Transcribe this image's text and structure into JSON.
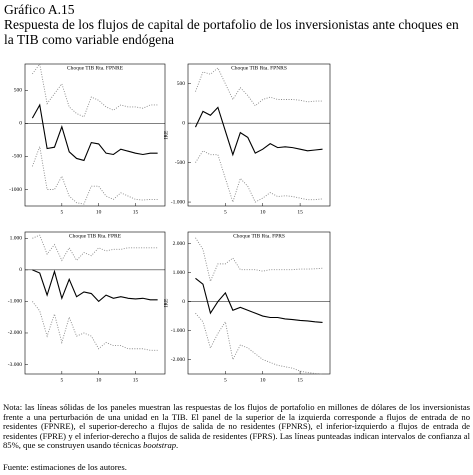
{
  "figure": {
    "label": "Gráfico A.15",
    "title": "Respuesta de los flujos de capital de portafolio de los inversionistas ante choques en la TIB como variable endógena"
  },
  "chart_data": [
    {
      "type": "line",
      "title": "Choque TIB Rta. FPNRE",
      "x": [
        1,
        2,
        3,
        4,
        5,
        6,
        7,
        8,
        9,
        10,
        11,
        12,
        13,
        14,
        15,
        16,
        17,
        18
      ],
      "xlim": [
        0,
        19
      ],
      "xticks": [
        5,
        10,
        15
      ],
      "ylim": [
        -1250,
        900
      ],
      "yticks": [
        500,
        0,
        -500,
        -1000
      ],
      "series": [
        {
          "color": "#000000",
          "style": "solid",
          "values": [
            80,
            280,
            -380,
            -360,
            -50,
            -430,
            -530,
            -560,
            -290,
            -310,
            -450,
            -470,
            -390,
            -420,
            -450,
            -470,
            -450,
            -450
          ]
        },
        {
          "color": "#888888",
          "style": "dotted",
          "values": [
            750,
            900,
            300,
            450,
            600,
            250,
            150,
            100,
            400,
            350,
            250,
            200,
            280,
            250,
            250,
            230,
            280,
            280
          ]
        },
        {
          "color": "#888888",
          "style": "dotted",
          "values": [
            -650,
            -350,
            -1000,
            -1000,
            -800,
            -1100,
            -1200,
            -1220,
            -950,
            -950,
            -1100,
            -1150,
            -1050,
            -1100,
            -1150,
            -1160,
            -1150,
            -1150
          ]
        }
      ]
    },
    {
      "type": "line",
      "title": "Choque TIB Rta. FPNRS",
      "ylabel": "IRE",
      "x": [
        1,
        2,
        3,
        4,
        5,
        6,
        7,
        8,
        9,
        10,
        11,
        12,
        13,
        14,
        15,
        16,
        17,
        18
      ],
      "xlim": [
        0,
        19
      ],
      "xticks": [
        5,
        10,
        15
      ],
      "ylim": [
        -1050,
        750
      ],
      "yticks": [
        500,
        0,
        -500,
        {
          "value": -1000,
          "label": "-1.000"
        }
      ],
      "series": [
        {
          "color": "#000000",
          "style": "solid",
          "values": [
            -50,
            150,
            100,
            200,
            -100,
            -400,
            -120,
            -180,
            -380,
            -330,
            -260,
            -310,
            -300,
            -310,
            -330,
            -350,
            -340,
            -330
          ]
        },
        {
          "color": "#888888",
          "style": "dotted",
          "values": [
            400,
            650,
            620,
            700,
            500,
            300,
            450,
            350,
            220,
            300,
            330,
            300,
            300,
            300,
            290,
            270,
            280,
            280
          ]
        },
        {
          "color": "#888888",
          "style": "dotted",
          "values": [
            -500,
            -350,
            -400,
            -400,
            -700,
            -1000,
            -700,
            -800,
            -1000,
            -950,
            -880,
            -930,
            -920,
            -930,
            -950,
            -970,
            -970,
            -960
          ]
        }
      ]
    },
    {
      "type": "line",
      "title": "Choque TIB Rta. FPRE",
      "x": [
        1,
        2,
        3,
        4,
        5,
        6,
        7,
        8,
        9,
        10,
        11,
        12,
        13,
        14,
        15,
        16,
        17,
        18
      ],
      "xlim": [
        0,
        19
      ],
      "xticks": [
        5,
        10,
        15
      ],
      "ylim": [
        -3300,
        1200
      ],
      "yticks": [
        {
          "value": 1000,
          "label": "1.000"
        },
        0,
        {
          "value": -1000,
          "label": "-1.000"
        },
        {
          "value": -2000,
          "label": "-2.000"
        },
        {
          "value": -3000,
          "label": "-3.000"
        }
      ],
      "series": [
        {
          "color": "#000000",
          "style": "solid",
          "values": [
            0,
            -100,
            -800,
            -50,
            -900,
            -300,
            -850,
            -700,
            -750,
            -1000,
            -800,
            -900,
            -850,
            -900,
            -920,
            -900,
            -950,
            -950
          ]
        },
        {
          "color": "#888888",
          "style": "dotted",
          "values": [
            1000,
            1100,
            500,
            800,
            300,
            700,
            300,
            550,
            450,
            700,
            600,
            650,
            650,
            700,
            700,
            700,
            700,
            700
          ]
        },
        {
          "color": "#888888",
          "style": "dotted",
          "values": [
            -1000,
            -1300,
            -2100,
            -1400,
            -2300,
            -1500,
            -2100,
            -2000,
            -2100,
            -2500,
            -2300,
            -2400,
            -2400,
            -2500,
            -2500,
            -2500,
            -2550,
            -2550
          ]
        }
      ]
    },
    {
      "type": "line",
      "title": "Choque TIB Rta. FPRS",
      "ylabel": "IRE",
      "x": [
        1,
        2,
        3,
        4,
        5,
        6,
        7,
        8,
        9,
        10,
        11,
        12,
        13,
        14,
        15,
        16,
        17,
        18
      ],
      "xlim": [
        0,
        19
      ],
      "xticks": [
        5,
        10,
        15
      ],
      "ylim": [
        -2500,
        2400
      ],
      "yticks": [
        {
          "value": 2000,
          "label": "2.000"
        },
        {
          "value": 1000,
          "label": "1.000"
        },
        0,
        {
          "value": -1000,
          "label": "-1.000"
        },
        {
          "value": -2000,
          "label": "-2.000"
        }
      ],
      "series": [
        {
          "color": "#000000",
          "style": "solid",
          "values": [
            800,
            600,
            -400,
            0,
            300,
            -300,
            -200,
            -300,
            -400,
            -500,
            -550,
            -550,
            -600,
            -620,
            -650,
            -670,
            -700,
            -720
          ]
        },
        {
          "color": "#888888",
          "style": "dotted",
          "values": [
            2200,
            1800,
            700,
            1300,
            1300,
            1500,
            1100,
            1100,
            1100,
            1050,
            1100,
            1100,
            1100,
            1100,
            1120,
            1120,
            1130,
            1150
          ]
        },
        {
          "color": "#888888",
          "style": "dotted",
          "values": [
            -400,
            -700,
            -1600,
            -1100,
            -700,
            -2000,
            -1500,
            -1600,
            -1800,
            -2000,
            -2100,
            -2200,
            -2250,
            -2300,
            -2400,
            -2450,
            -2480,
            -2500
          ]
        }
      ]
    }
  ],
  "note": {
    "text": "Nota: las líneas sólidas de los paneles muestran las respuestas de los flujos de portafolio en millones de dólares de los inversionistas frente a una perturbación de una unidad en la TIB. El panel de la superior de la izquierda corresponde a flujos de entrada de no residentes (FPNRE), el superior-derecho a flujos de salida de no residentes (FPNRS), el inferior-izquierdo a flujos de entrada de residentes (FPRE) y el inferior-derecho a flujos de salida de residentes (FPRS). Las líneas punteadas indican intervalos de confianza al 85%, que se construyen usando técnicas",
    "italic": "bootstrap",
    "end": "."
  },
  "source": "Fuente: estimaciones de los autores."
}
